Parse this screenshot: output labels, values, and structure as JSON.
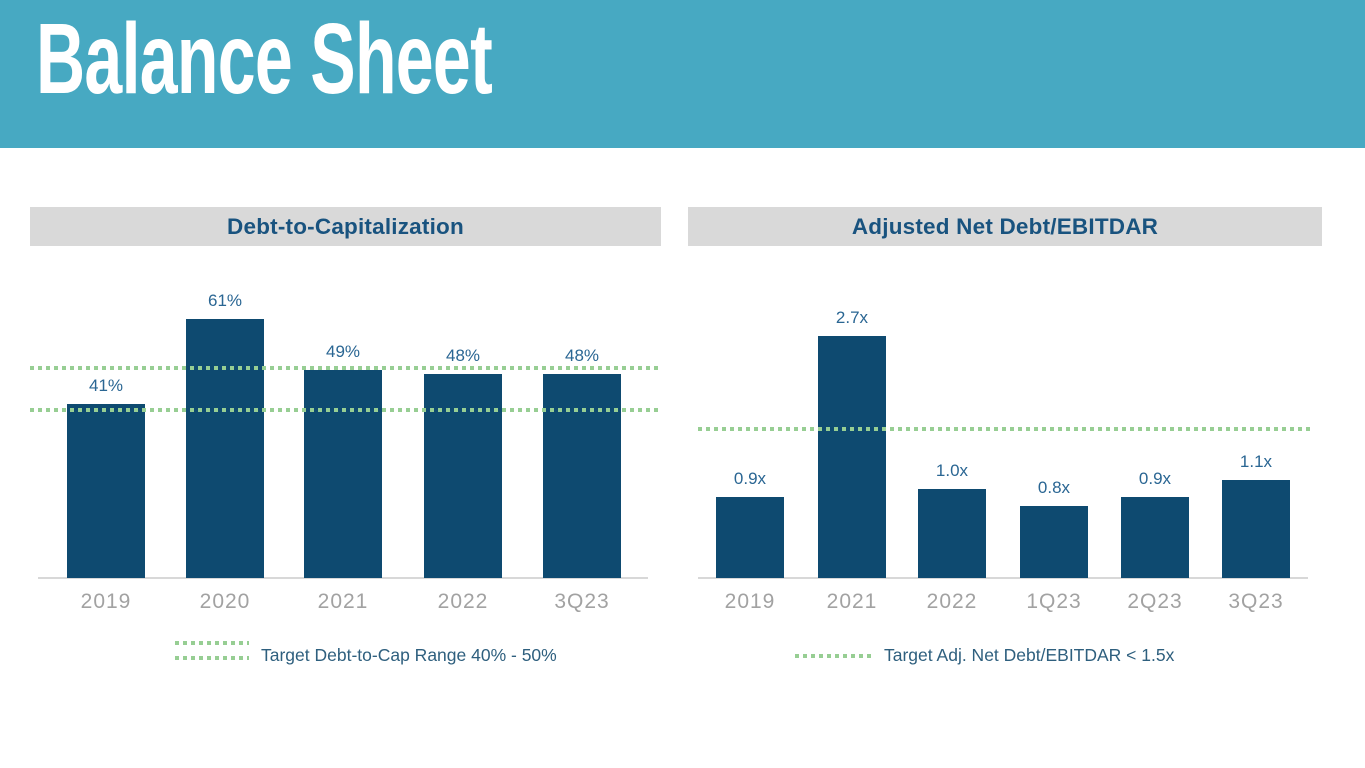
{
  "page": {
    "title": "Balance Sheet"
  },
  "colors": {
    "banner": "#47a9c2",
    "bar": "#0e4a70",
    "title_bar_bg": "#d9d9d9",
    "chart_title_text": "#19537f",
    "value_label": "#2a6693",
    "axis_label": "#a2a2a2",
    "target_line": "#97ce93",
    "legend_text": "#2e5f7e",
    "axis_line": "#d8d8d8"
  },
  "chart_data": [
    {
      "type": "bar",
      "title": "Debt-to-Capitalization",
      "categories": [
        "2019",
        "2020",
        "2021",
        "2022",
        "3Q23"
      ],
      "values": [
        41,
        61,
        49,
        48,
        48
      ],
      "value_labels": [
        "41%",
        "61%",
        "49%",
        "48%",
        "48%"
      ],
      "unit": "%",
      "target_range": [
        40,
        50
      ],
      "target_legend": "Target Debt-to-Cap Range 40% - 50%",
      "ylim": [
        0,
        65
      ],
      "grid": false,
      "legend_position": "bottom"
    },
    {
      "type": "bar",
      "title": "Adjusted Net Debt/EBITDAR",
      "categories": [
        "2019",
        "2021",
        "2022",
        "1Q23",
        "2Q23",
        "3Q23"
      ],
      "values": [
        0.9,
        2.7,
        1.0,
        0.8,
        0.9,
        1.1
      ],
      "value_labels": [
        "0.9x",
        "2.7x",
        "1.0x",
        "0.8x",
        "0.9x",
        "1.1x"
      ],
      "unit": "x",
      "target_max": 1.5,
      "target_legend": "Target Adj. Net Debt/EBITDAR < 1.5x",
      "ylim": [
        0,
        3
      ],
      "grid": false,
      "legend_position": "bottom"
    }
  ]
}
